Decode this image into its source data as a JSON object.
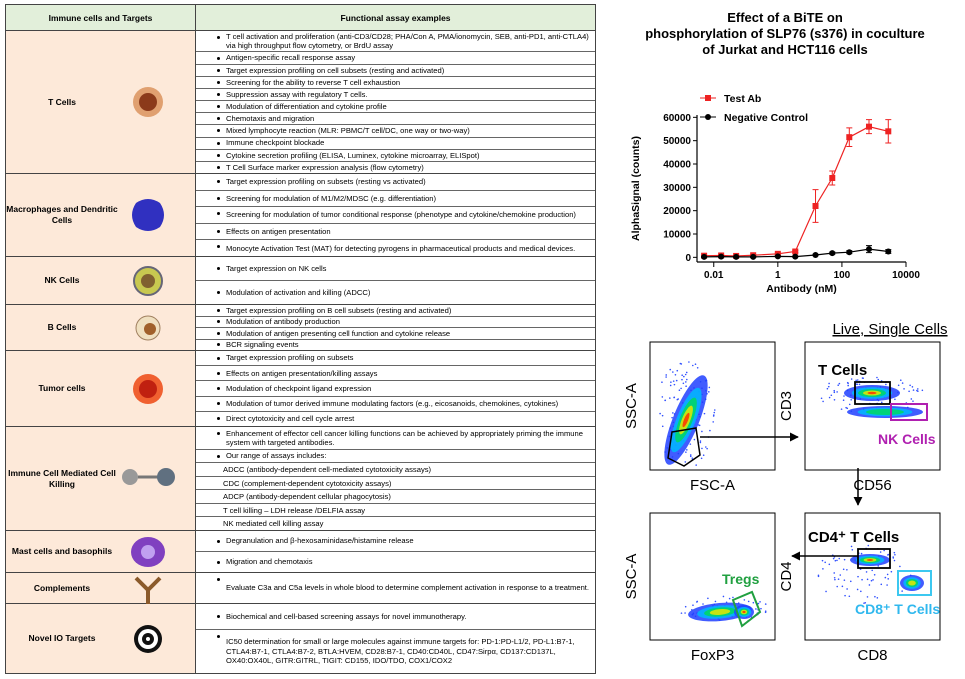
{
  "table": {
    "headers": [
      "Immune cells and Targets",
      "Functional assay examples"
    ],
    "groups": [
      {
        "name": "T Cells",
        "items": [
          "T cell activation and proliferation (anti-CD3/CD28; PHA/Con A, PMA/ionomycin, SEB, anti-PD1, anti-CTLA4) via high throughput flow cytometry, or BrdU assay",
          "Antigen-specific recall response assay",
          "Target expression profiling on cell subsets (resting and activated)",
          "Screening for the ability to reverse T cell exhaustion",
          "Suppression assay with regulatory T cells.",
          "Modulation of differentiation and cytokine profile",
          "Chemotaxis and migration",
          "Mixed lymphocyte reaction (MLR: PBMC/T cell/DC, one way or two-way)",
          "Immune checkpoint blockade",
          "Cytokine secretion profiling (ELISA, Luminex, cytokine microarray, ELISpot)",
          "T Cell Surface marker expression analysis (flow cytometry)"
        ]
      },
      {
        "name": "Macrophages and Dendritic Cells",
        "items": [
          "Target expression profiling on subsets (resting vs activated)",
          "Screening for modulation of M1/M2/MDSC (e.g. differentiation)",
          "Screening for modulation of tumor conditional response (phenotype and cytokine/chemokine production)",
          "Effects on antigen presentation",
          "Monocyte Activation Test (MAT) for detecting pyrogens in pharmaceutical products and medical devices."
        ]
      },
      {
        "name": "NK Cells",
        "items": [
          "Target expression on NK cells",
          "Modulation of activation and killing (ADCC)"
        ]
      },
      {
        "name": "B Cells",
        "items": [
          "Target expression profiling on B cell subsets (resting and activated)",
          "Modulation of antibody production",
          "Modulation of antigen presenting cell function and cytokine release",
          "BCR signaling events"
        ]
      },
      {
        "name": "Tumor cells",
        "items": [
          "Target expression profiling on subsets",
          "Effects on antigen presentation/killing assays",
          "Modulation of checkpoint ligand expression",
          "Modulation of tumor derived immune modulating factors (e.g., eicosanoids, chemokines, cytokines)",
          "Direct cytotoxicity and cell cycle arrest"
        ]
      },
      {
        "name": "Immune Cell Mediated Cell Killing",
        "items": [
          "Enhancement of effector cell cancer killing functions can be achieved by appropriately priming the immune system with targeted antibodies.",
          "Our range of assays includes:"
        ],
        "subitems": [
          "ADCC (antibody-dependent cell-mediated cytotoxicity assays)",
          "CDC (complement-dependent cytotoxicity assays)",
          "ADCP (antibody-dependent cellular phagocytosis)",
          "T cell killing – LDH release /DELFIA assay",
          "NK mediated cell killing assay"
        ]
      },
      {
        "name": "Mast cells and basophils",
        "items": [
          "Degranulation and β-hexosaminidase/histamine release",
          "Migration and chemotaxis"
        ]
      },
      {
        "name": "Complements",
        "items": [
          "Evaluate C3a and C5a levels in whole blood to determine complement activation in response to a treatment."
        ]
      },
      {
        "name": "Novel IO Targets",
        "items": [
          "Biochemical and cell-based screening assays for novel immunotherapy.",
          "IC50 determination for small or large molecules against immune targets for: PD-1:PD-L1/2,  PD-L1:B7-1, CTLA4:B7-1, CTLA4:B7-2, BTLA:HVEM, CD28:B7-1, CD40:CD40L, CD47:Sirpα, CD137:CD137L, OX40:OX40L, GITR:GITRL, TIGIT: CD155, IDO/TDO, COX1/COX2"
        ]
      }
    ]
  },
  "chart_data": {
    "type": "line",
    "title": [
      "Effect of a BiTE on",
      "phosphorylation of SLP76 (s376)  in coculture",
      "of  Jurkat and HCT116 cells"
    ],
    "x_label": "Antibody (nM)",
    "y_label": "AlphaSignal (counts)",
    "x": [
      0.005,
      0.017,
      0.05,
      0.17,
      1,
      3.5,
      15,
      50,
      170,
      700,
      2800
    ],
    "xlog": true,
    "xlim": [
      0.003,
      10000
    ],
    "xticks": [
      0.01,
      1,
      100,
      10000
    ],
    "ylim": [
      -2000,
      61000
    ],
    "yticks": [
      0,
      10000,
      20000,
      30000,
      40000,
      50000,
      60000
    ],
    "series": [
      {
        "name": "Test Ab",
        "color": "#ee2222",
        "marker": "square",
        "values": [
          700,
          800,
          600,
          900,
          1500,
          2500,
          22000,
          34000,
          51500,
          56000,
          54000
        ],
        "errors": [
          300,
          300,
          300,
          300,
          400,
          500,
          7000,
          3000,
          4000,
          3000,
          5000
        ]
      },
      {
        "name": "Negative Control",
        "color": "#000000",
        "marker": "circle",
        "values": [
          200,
          300,
          200,
          200,
          400,
          300,
          1000,
          1800,
          2200,
          3500,
          2500
        ],
        "errors": [
          200,
          200,
          200,
          200,
          200,
          200,
          300,
          500,
          600,
          1500,
          800
        ]
      }
    ]
  },
  "flow": {
    "title": "Live, Single Cells",
    "plots": [
      {
        "x_label": "FSC-A",
        "y_label": "SSC-A"
      },
      {
        "x_label": "CD56",
        "y_label": "CD3",
        "gates": [
          "T Cells",
          "NK Cells"
        ]
      },
      {
        "x_label": "CD8",
        "y_label": "CD4",
        "gates": [
          "CD4⁺ T Cells",
          "CD8⁺ T Cells"
        ]
      },
      {
        "x_label": "FoxP3",
        "y_label": "SSC-A",
        "gates": [
          "Tregs"
        ]
      }
    ]
  }
}
